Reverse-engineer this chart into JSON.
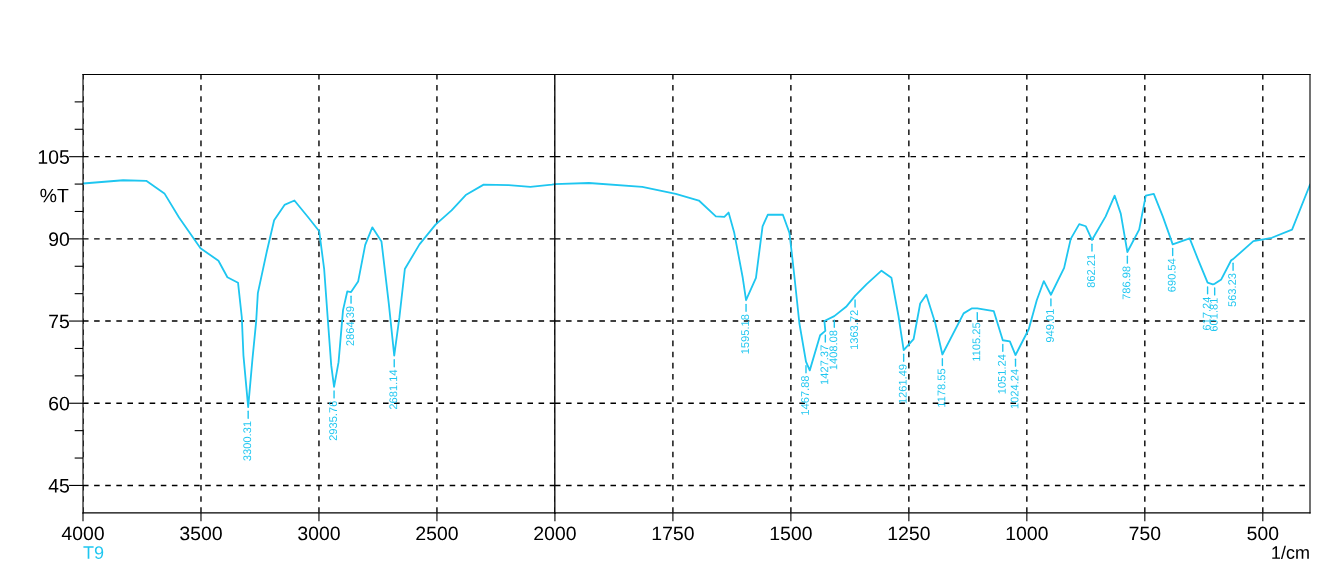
{
  "chart_data": [
    {
      "type": "line",
      "ylabel": "%T",
      "x": [
        4000,
        3830,
        3732,
        3655,
        3593,
        3502,
        3426,
        3388,
        3343,
        3327,
        3320,
        3300,
        3282,
        3266,
        3259,
        3221,
        3190,
        3146,
        3104,
        3045,
        2999,
        2978,
        2962,
        2948,
        2936,
        2917,
        2898,
        2880,
        2864,
        2834,
        2804,
        2774,
        2735,
        2704,
        2681,
        2659,
        2636,
        2574,
        2506,
        2438,
        2378,
        2302,
        2196,
        2104,
        2013,
        2000
      ],
      "series": [
        {
          "color": "#1ec6f0",
          "values": [
            100.1,
            100.7,
            100.6,
            98.3,
            93.9,
            88.3,
            86.0,
            83.0,
            82.0,
            75.7,
            68.7,
            59.3,
            68.0,
            75.0,
            80.1,
            87.7,
            93.4,
            96.2,
            97.0,
            93.9,
            91.4,
            84.5,
            75.0,
            66.9,
            63.0,
            67.5,
            77.0,
            80.4,
            80.3,
            82.2,
            88.9,
            92.1,
            89.5,
            78.2,
            68.7,
            75.7,
            84.5,
            89.0,
            92.6,
            95.2,
            98.0,
            99.9,
            99.8,
            99.5,
            99.9,
            100.0
          ]
        }
      ],
      "xlim": [
        4000,
        2000
      ],
      "ylim": [
        40,
        120
      ],
      "xticks": [
        4000,
        3500,
        3000,
        2500,
        2000
      ],
      "yticks": [
        45,
        {
          "value": 50,
          "label": null
        },
        {
          "value": 55,
          "label": null
        },
        60,
        {
          "value": 65,
          "label": null
        },
        {
          "value": 70,
          "label": null
        },
        75,
        {
          "value": 80,
          "label": null
        },
        {
          "value": 85,
          "label": null
        },
        90,
        {
          "value": 95,
          "label": null
        },
        {
          "value": 100,
          "label": null
        },
        105,
        {
          "value": 110,
          "label": null
        },
        {
          "value": 115,
          "label": null
        }
      ],
      "grid": true,
      "marker": "none",
      "line_style": "solid",
      "annotations": [
        "T9",
        {
          "text": "3300.31",
          "x": 3300,
          "y": 59.3
        },
        {
          "text": "2935.76",
          "x": 2936,
          "y": 63.0
        },
        {
          "text": "2864.39",
          "x": 2864,
          "y": 80.3
        },
        {
          "text": "2681.14",
          "x": 2681,
          "y": 68.7
        }
      ]
    },
    {
      "type": "line",
      "xlabel": "1/cm",
      "x": [
        2000,
        1928,
        1815,
        1744,
        1695,
        1659,
        1641,
        1632,
        1620,
        1602,
        1595,
        1574,
        1560,
        1549,
        1517,
        1503,
        1493,
        1482,
        1468,
        1460,
        1438,
        1427,
        1429,
        1408,
        1383,
        1364,
        1340,
        1308,
        1287,
        1272,
        1261,
        1240,
        1226,
        1213,
        1194,
        1179,
        1134,
        1117,
        1105,
        1070,
        1051,
        1036,
        1024,
        996,
        979,
        964,
        949,
        921,
        907,
        889,
        875,
        862,
        833,
        814,
        801,
        787,
        762,
        748,
        731,
        712,
        695,
        691,
        655,
        638,
        617,
        606,
        602,
        588,
        567,
        563,
        520,
        481,
        438,
        400
      ],
      "series": [
        {
          "color": "#1ec6f0",
          "values": [
            100.0,
            100.2,
            99.5,
            98.2,
            97.0,
            94.1,
            94.0,
            94.8,
            91.1,
            82.9,
            78.8,
            82.9,
            92.3,
            94.4,
            94.4,
            91.1,
            83.5,
            74.6,
            67.6,
            66.0,
            72.4,
            73.2,
            75.0,
            75.9,
            77.6,
            79.6,
            81.7,
            84.2,
            82.9,
            75.9,
            69.7,
            71.7,
            78.2,
            79.8,
            74.6,
            68.9,
            76.4,
            77.3,
            77.3,
            76.8,
            71.5,
            71.3,
            68.8,
            73.5,
            78.8,
            82.3,
            79.8,
            84.7,
            90.0,
            92.7,
            92.3,
            89.8,
            94.1,
            97.9,
            94.6,
            87.6,
            91.7,
            97.9,
            98.2,
            94.1,
            90.0,
            89.0,
            90.1,
            86.4,
            82.0,
            81.7,
            81.8,
            82.6,
            86.1,
            86.3,
            89.6,
            90.2,
            91.7,
            99.9
          ]
        }
      ],
      "xlim": [
        2000,
        400
      ],
      "ylim": [
        40,
        120
      ],
      "xticks": [
        1750,
        1500,
        1250,
        1000,
        750,
        500
      ],
      "yticks": [
        45,
        60,
        75,
        90,
        105
      ],
      "tick_labels": "x",
      "grid": true,
      "marker": "none",
      "line_style": "solid",
      "annotations": [
        {
          "text": "1595.18",
          "x": 1595,
          "y": 78.8
        },
        {
          "text": "1467.88",
          "x": 1468,
          "y": 67.6
        },
        {
          "text": "1427.37",
          "x": 1427,
          "y": 73.2
        },
        {
          "text": "1408.08",
          "x": 1408,
          "y": 75.9
        },
        {
          "text": "1363.72",
          "x": 1364,
          "y": 79.6
        },
        {
          "text": "1261.49",
          "x": 1261,
          "y": 69.7
        },
        {
          "text": "1178.55",
          "x": 1179,
          "y": 68.9
        },
        {
          "text": "1105.25",
          "x": 1105,
          "y": 77.3
        },
        {
          "text": "1051.24",
          "x": 1051,
          "y": 71.5
        },
        {
          "text": "1024.24",
          "x": 1024,
          "y": 68.8
        },
        {
          "text": "949.01",
          "x": 949,
          "y": 79.8
        },
        {
          "text": "862.21",
          "x": 862,
          "y": 89.8
        },
        {
          "text": "786.98",
          "x": 787,
          "y": 87.6
        },
        {
          "text": "690.54",
          "x": 691,
          "y": 89.0
        },
        {
          "text": "617.24",
          "x": 617,
          "y": 82.0
        },
        {
          "text": "601.81",
          "x": 602,
          "y": 81.8
        },
        {
          "text": "563.23",
          "x": 563,
          "y": 86.3
        }
      ]
    }
  ]
}
